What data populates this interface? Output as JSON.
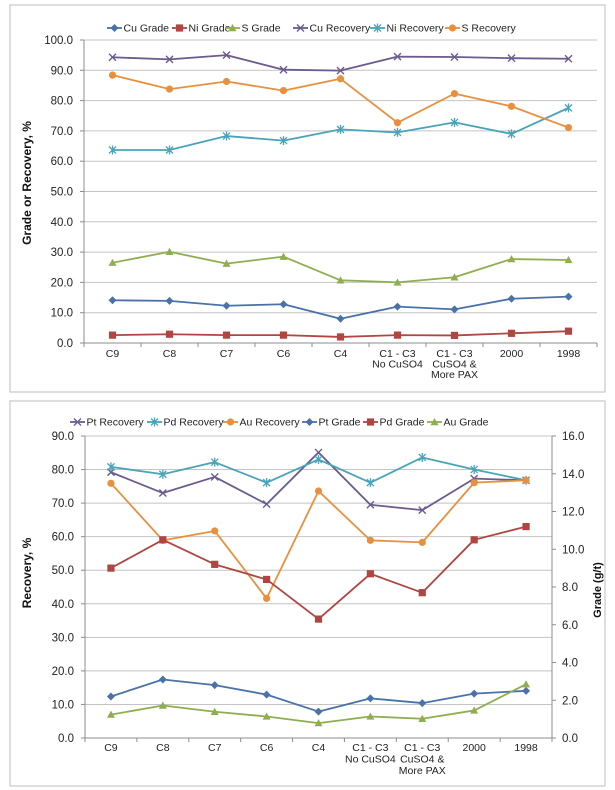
{
  "chart_data": [
    {
      "type": "line",
      "title": "",
      "xlabel": "",
      "ylabel": "Grade or Recovery, %",
      "ylim": [
        0,
        100
      ],
      "yticks": [
        "0.0",
        "10.0",
        "20.0",
        "30.0",
        "40.0",
        "50.0",
        "60.0",
        "70.0",
        "80.0",
        "90.0",
        "100.0"
      ],
      "grid": true,
      "legend": "top",
      "categories": [
        "C9",
        "C8",
        "C7",
        "C6",
        "C4",
        "C1 - C3 No CuSO4",
        "C1 - C3 CuSO4 & More PAX",
        "2000",
        "1998"
      ],
      "category_lines": [
        [
          "C9"
        ],
        [
          "C8"
        ],
        [
          "C7"
        ],
        [
          "C6"
        ],
        [
          "C4"
        ],
        [
          "C1 - C3",
          "No CuSO4"
        ],
        [
          "C1 - C3",
          "CuSO4 &",
          "More PAX"
        ],
        [
          "2000"
        ],
        [
          "1998"
        ]
      ],
      "series": [
        {
          "name": "Cu Grade",
          "marker": "diamond",
          "color": "#4a72a8",
          "axis": "primary",
          "values": [
            14.1,
            13.9,
            12.3,
            12.8,
            8.0,
            12.0,
            11.1,
            14.6,
            15.3
          ]
        },
        {
          "name": "Ni Grade",
          "marker": "square",
          "color": "#b04541",
          "axis": "primary",
          "values": [
            2.6,
            2.9,
            2.6,
            2.6,
            2.0,
            2.6,
            2.5,
            3.2,
            3.9
          ]
        },
        {
          "name": "S Grade",
          "marker": "triangle",
          "color": "#8fae50",
          "axis": "primary",
          "values": [
            26.5,
            30.1,
            26.2,
            28.5,
            20.7,
            20.0,
            21.7,
            27.7,
            27.4
          ]
        },
        {
          "name": "Cu Recovery",
          "marker": "x",
          "color": "#6b5b8e",
          "axis": "primary",
          "values": [
            94.3,
            93.6,
            95.0,
            90.2,
            89.9,
            94.5,
            94.4,
            94.0,
            93.8
          ]
        },
        {
          "name": "Ni Recovery",
          "marker": "star",
          "color": "#4aa3b8",
          "axis": "primary",
          "values": [
            63.7,
            63.7,
            68.3,
            66.8,
            70.5,
            69.5,
            72.8,
            69.0,
            77.6
          ]
        },
        {
          "name": "S Recovery",
          "marker": "circle",
          "color": "#e8903e",
          "axis": "primary",
          "values": [
            88.4,
            83.8,
            86.3,
            83.3,
            87.2,
            72.7,
            82.3,
            78.1,
            71.1
          ]
        }
      ]
    },
    {
      "type": "line",
      "title": "",
      "xlabel": "",
      "ylabel": "Recovery, %",
      "ylim": [
        0,
        90
      ],
      "yticks": [
        "0.0",
        "10.0",
        "20.0",
        "30.0",
        "40.0",
        "50.0",
        "60.0",
        "70.0",
        "80.0",
        "90.0"
      ],
      "y2label": "Grade (g/t)",
      "y2lim": [
        0,
        16
      ],
      "y2ticks": [
        "0.0",
        "2.0",
        "4.0",
        "6.0",
        "8.0",
        "10.0",
        "12.0",
        "14.0",
        "16.0"
      ],
      "grid": true,
      "legend": "top",
      "categories": [
        "C9",
        "C8",
        "C7",
        "C6",
        "C4",
        "C1 - C3 No CuSO4",
        "C1 - C3 CuSO4 & More PAX",
        "2000",
        "1998"
      ],
      "category_lines": [
        [
          "C9"
        ],
        [
          "C8"
        ],
        [
          "C7"
        ],
        [
          "C6"
        ],
        [
          "C4"
        ],
        [
          "C1 - C3",
          "No CuSO4"
        ],
        [
          "C1 - C3",
          "CuSO4 &",
          "More PAX"
        ],
        [
          "2000"
        ],
        [
          "1998"
        ]
      ],
      "series": [
        {
          "name": "Pt Recovery",
          "marker": "x",
          "color": "#6b5b8e",
          "axis": "primary",
          "values": [
            79.2,
            73.0,
            77.8,
            69.7,
            85.1,
            69.5,
            67.9,
            77.3,
            76.8
          ]
        },
        {
          "name": "Pd Recovery",
          "marker": "star",
          "color": "#4aa3b8",
          "axis": "primary",
          "values": [
            80.8,
            78.6,
            82.2,
            76.1,
            83.0,
            76.1,
            83.6,
            80.0,
            76.8
          ]
        },
        {
          "name": "Au Recovery",
          "marker": "circle",
          "color": "#e8903e",
          "axis": "primary",
          "values": [
            75.9,
            58.9,
            61.7,
            41.6,
            73.6,
            58.9,
            58.3,
            76.1,
            76.8
          ]
        },
        {
          "name": "Pt Grade",
          "marker": "diamond",
          "color": "#4a72a8",
          "axis": "secondary",
          "values": [
            2.2,
            3.1,
            2.8,
            2.3,
            1.4,
            2.1,
            1.85,
            2.35,
            2.5
          ]
        },
        {
          "name": "Pd Grade",
          "marker": "square",
          "color": "#b04541",
          "axis": "secondary",
          "values": [
            9.0,
            10.5,
            9.2,
            8.4,
            6.3,
            8.7,
            7.7,
            10.5,
            11.2
          ]
        },
        {
          "name": "Au Grade",
          "marker": "triangle",
          "color": "#8fae50",
          "axis": "secondary",
          "values": [
            1.24,
            1.72,
            1.39,
            1.14,
            0.79,
            1.14,
            1.02,
            1.46,
            2.85
          ]
        }
      ]
    }
  ]
}
